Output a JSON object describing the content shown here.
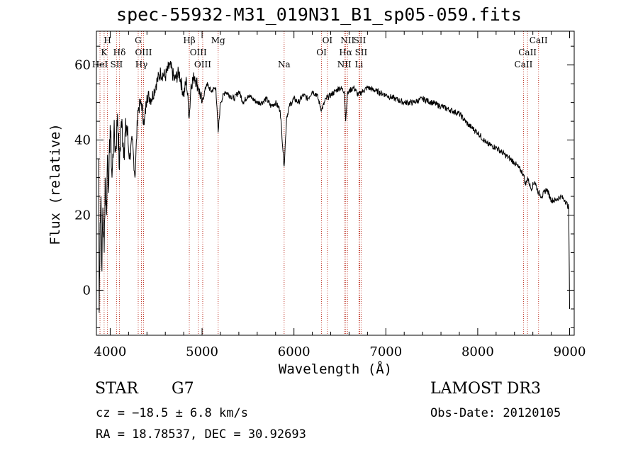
{
  "chart_data": {
    "type": "line",
    "title": "spec-55932-M31_019N31_B1_sp05-059.fits",
    "xlabel": "Wavelength (Å)",
    "ylabel": "Flux (relative)",
    "xlim": [
      3850,
      9050
    ],
    "ylim": [
      -12,
      69
    ],
    "xticks": [
      4000,
      5000,
      6000,
      7000,
      8000,
      9000
    ],
    "xtick_labels": [
      "4000",
      "5000",
      "6000",
      "7000",
      "8000",
      "9000"
    ],
    "yticks": [
      0,
      20,
      40,
      60
    ],
    "ytick_labels": [
      "0",
      "20",
      "40",
      "60"
    ],
    "grid": false,
    "series": [
      {
        "name": "flux",
        "x": [
          3875,
          3880,
          3890,
          3900,
          3910,
          3920,
          3935,
          3945,
          3960,
          3970,
          3985,
          4000,
          4020,
          4040,
          4060,
          4080,
          4101,
          4120,
          4150,
          4180,
          4210,
          4240,
          4270,
          4300,
          4340,
          4370,
          4400,
          4450,
          4500,
          4550,
          4600,
          4650,
          4700,
          4750,
          4800,
          4830,
          4861,
          4880,
          4920,
          4960,
          5000,
          5050,
          5100,
          5150,
          5175,
          5200,
          5250,
          5300,
          5350,
          5400,
          5450,
          5500,
          5550,
          5600,
          5650,
          5700,
          5750,
          5800,
          5850,
          5893,
          5920,
          5950,
          6000,
          6050,
          6100,
          6150,
          6200,
          6250,
          6300,
          6350,
          6400,
          6450,
          6500,
          6550,
          6563,
          6580,
          6600,
          6650,
          6700,
          6750,
          6800,
          6900,
          7000,
          7100,
          7200,
          7300,
          7400,
          7500,
          7600,
          7700,
          7800,
          7900,
          8000,
          8100,
          8200,
          8300,
          8400,
          8498,
          8520,
          8542,
          8580,
          8620,
          8662,
          8700,
          8750,
          8800,
          8850,
          8900,
          8950,
          8990,
          9000
        ],
        "y": [
          35,
          -6,
          18,
          25,
          5,
          22,
          10,
          30,
          20,
          36,
          28,
          44,
          30,
          42,
          37,
          47,
          32,
          45,
          38,
          44,
          35,
          40,
          30,
          48,
          50,
          44,
          52,
          51,
          55,
          58,
          57,
          60,
          56,
          58,
          52,
          56,
          46,
          55,
          57,
          54,
          50,
          55,
          53,
          54,
          42,
          50,
          53,
          52,
          51,
          53,
          50,
          52,
          51,
          50,
          50,
          51,
          49,
          50,
          48,
          33,
          46,
          49,
          51,
          50,
          52,
          51,
          53,
          52,
          48,
          51,
          52,
          53,
          54,
          53,
          45,
          52,
          53,
          54,
          52,
          53,
          54,
          53,
          52,
          51,
          50,
          50,
          51,
          50,
          49,
          48,
          47,
          44,
          42,
          39,
          38,
          36,
          34,
          31,
          28,
          30,
          27,
          29,
          26,
          25,
          27,
          24,
          24,
          25,
          24,
          22,
          -5
        ]
      }
    ],
    "lines": [
      {
        "name": "H",
        "wavelength": 3970,
        "row": 1
      },
      {
        "name": "K",
        "wavelength": 3934,
        "row": 2
      },
      {
        "name": "HeI",
        "wavelength": 3889,
        "row": 3
      },
      {
        "name": "SII",
        "wavelength": 4069,
        "row": 3
      },
      {
        "name": "Hδ",
        "wavelength": 4101,
        "row": 2
      },
      {
        "name": "G",
        "wavelength": 4305,
        "row": 1
      },
      {
        "name": "OIII",
        "wavelength": 4363,
        "row": 2
      },
      {
        "name": "Hγ",
        "wavelength": 4340,
        "row": 3
      },
      {
        "name": "Hβ",
        "wavelength": 4861,
        "row": 1
      },
      {
        "name": "OIII",
        "wavelength": 4959,
        "row": 2
      },
      {
        "name": "OIII",
        "wavelength": 5007,
        "row": 3
      },
      {
        "name": "Mg",
        "wavelength": 5175,
        "row": 1
      },
      {
        "name": "Na",
        "wavelength": 5893,
        "row": 3
      },
      {
        "name": "OI",
        "wavelength": 6364,
        "row": 1
      },
      {
        "name": "OI",
        "wavelength": 6300,
        "row": 2
      },
      {
        "name": "NII",
        "wavelength": 6583,
        "row": 1
      },
      {
        "name": "SII",
        "wavelength": 6716,
        "row": 1
      },
      {
        "name": "Hα",
        "wavelength": 6563,
        "row": 2
      },
      {
        "name": "SII",
        "wavelength": 6731,
        "row": 2
      },
      {
        "name": "NII",
        "wavelength": 6548,
        "row": 3
      },
      {
        "name": "Li",
        "wavelength": 6708,
        "row": 3
      },
      {
        "name": "CaII",
        "wavelength": 8662,
        "row": 1
      },
      {
        "name": "CaII",
        "wavelength": 8542,
        "row": 2
      },
      {
        "name": "CaII",
        "wavelength": 8498,
        "row": 3
      }
    ]
  },
  "info": {
    "class": "STAR",
    "subclass": "G7",
    "survey": "LAMOST DR3",
    "redshift": "cz = −18.5 ± 6.8 km/s",
    "obs_date": "Obs-Date: 20120105",
    "coords": "RA =  18.78537, DEC =  30.92693"
  },
  "colors": {
    "axis": "#000000",
    "spectrum": "#000000",
    "line_marker": "#c0392b"
  }
}
